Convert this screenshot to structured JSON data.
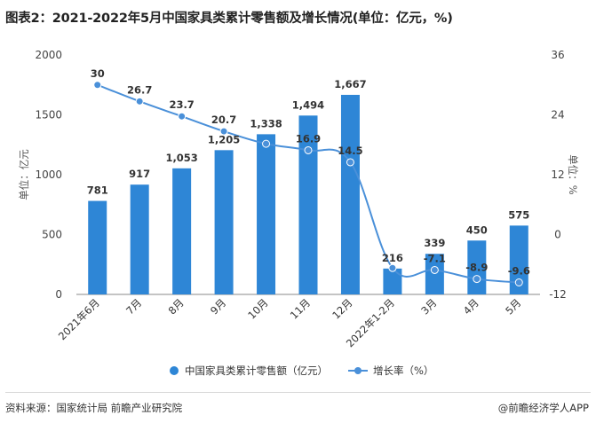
{
  "title": "图表2：2021-2022年5月中国家具类累计零售额及增长情况(单位：亿元，%)",
  "source": "资料来源：国家统计局 前瞻产业研究院",
  "brand": "@前瞻经济学人APP",
  "colors": {
    "bar": "#2e86d6",
    "line": "#4a90d9"
  },
  "chart_data": {
    "type": "bar",
    "categories": [
      "2021年6月",
      "7月",
      "8月",
      "9月",
      "10月",
      "11月",
      "12月",
      "2022年1-2月",
      "3月",
      "4月",
      "5月"
    ],
    "series": [
      {
        "name": "中国家具类累计零售额（亿元）",
        "type": "bar",
        "axis": "left",
        "values": [
          781,
          917,
          1053,
          1205,
          1338,
          1494,
          1667,
          216,
          339,
          450,
          575
        ],
        "labels": [
          "781",
          "917",
          "1,053",
          "1,205",
          "1,338",
          "1,494",
          "1,667",
          "216",
          "339",
          "450",
          "575"
        ]
      },
      {
        "name": "增长率（%）",
        "type": "line",
        "axis": "right",
        "values": [
          30,
          26.7,
          23.7,
          20.7,
          18.2,
          16.9,
          14.5,
          -6.7,
          -7.1,
          -8.9,
          -9.6
        ],
        "labels": [
          "30",
          "26.7",
          "23.7",
          "20.7",
          "",
          "16.9",
          "14.5",
          "",
          "-7.1",
          "-8.9",
          "-9.6"
        ]
      }
    ],
    "ylabel": "单位：亿元",
    "y2label": "单位：%",
    "ylim": [
      0,
      2000
    ],
    "yticks": [
      "0",
      "500",
      "1000",
      "1500",
      "2000"
    ],
    "y2lim": [
      -12,
      36
    ],
    "y2ticks": [
      "-12",
      "0",
      "12",
      "24",
      "36"
    ],
    "grid": false,
    "legend_position": "bottom"
  }
}
